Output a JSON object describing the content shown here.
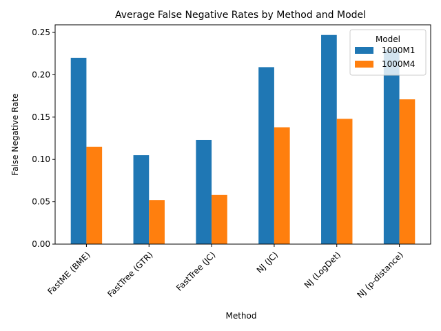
{
  "chart_data": {
    "type": "bar",
    "title": "Average False Negative Rates by Method and Model",
    "xlabel": "Method",
    "ylabel": "False Negative Rate",
    "categories": [
      "FastME (BME)",
      "FastTree (GTR)",
      "FastTree (JC)",
      "NJ (JC)",
      "NJ (LogDet)",
      "NJ (p-distance)"
    ],
    "series": [
      {
        "name": "1000M1",
        "color": "#1f77b4",
        "values": [
          0.22,
          0.105,
          0.123,
          0.209,
          0.247,
          0.23
        ]
      },
      {
        "name": "1000M4",
        "color": "#ff7f0e",
        "values": [
          0.115,
          0.052,
          0.058,
          0.138,
          0.148,
          0.171
        ]
      }
    ],
    "ylim": [
      0,
      0.259
    ],
    "yticks": [
      "0.00",
      "0.05",
      "0.10",
      "0.15",
      "0.20",
      "0.25"
    ],
    "legend": {
      "title": "Model",
      "position": "top-right"
    },
    "grid": false
  }
}
